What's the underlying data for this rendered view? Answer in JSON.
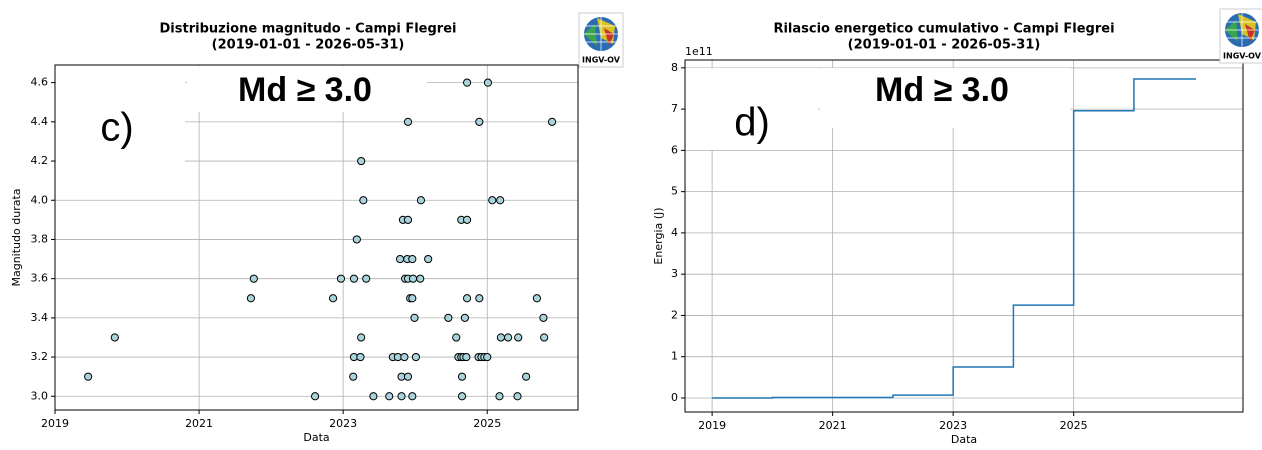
{
  "chart_data": [
    {
      "type": "scatter",
      "title": "Distribuzione magnitudo - Campi Flegrei",
      "subtitle": "(2019-01-01 - 2026-05-31)",
      "x_label": "Data",
      "y_label": "Magnitudo durata",
      "annotations": [
        "Md ≥ 3.0",
        "c)"
      ],
      "logo_text": "INGV-OV",
      "color": "#a9d4dc",
      "edge_color": "#000000",
      "grid": true,
      "xlim": [
        2019,
        2026.26
      ],
      "xticks": [
        2019,
        2021,
        2023,
        2025
      ],
      "ylim": [
        2.93,
        4.69
      ],
      "yticks": [
        {
          "value": 3,
          "label": "3.0"
        },
        3.2,
        3.4,
        3.6,
        3.8,
        {
          "value": 4,
          "label": "4.0"
        },
        4.2,
        4.4,
        4.6
      ],
      "x": [
        2019.46,
        2019.83,
        2021.72,
        2021.76,
        2022.61,
        2022.86,
        2022.97,
        2023.14,
        2023.15,
        2023.15,
        2023.19,
        2023.24,
        2023.25,
        2023.25,
        2023.28,
        2023.32,
        2023.42,
        2023.64,
        2023.69,
        2023.76,
        2023.79,
        2023.81,
        2023.81,
        2023.83,
        2023.85,
        2023.86,
        2023.89,
        2023.9,
        2023.9,
        2023.9,
        2023.9,
        2023.93,
        2023.96,
        2023.96,
        2023.96,
        2023.97,
        2023.99,
        2024.01,
        2024.07,
        2024.08,
        2024.18,
        2024.46,
        2024.57,
        2024.6,
        2024.64,
        2024.64,
        2024.65,
        2024.65,
        2024.67,
        2024.69,
        2024.71,
        2024.72,
        2024.72,
        2024.72,
        2024.88,
        2024.89,
        2024.89,
        2024.92,
        2024.96,
        2025.0,
        2025.01,
        2025.07,
        2025.17,
        2025.18,
        2025.19,
        2025.29,
        2025.42,
        2025.43,
        2025.54,
        2025.69,
        2025.78,
        2025.79,
        2025.9
      ],
      "values": [
        3.1,
        3.3,
        3.5,
        3.6,
        3.0,
        3.5,
        3.6,
        3.1,
        3.2,
        3.6,
        3.8,
        3.2,
        3.3,
        4.2,
        4.0,
        3.6,
        3.0,
        3.0,
        3.2,
        3.2,
        3.7,
        3.1,
        3.0,
        3.9,
        3.2,
        3.6,
        3.7,
        3.6,
        3.1,
        3.9,
        4.4,
        3.5,
        3.0,
        3.7,
        3.5,
        3.6,
        3.4,
        3.2,
        3.6,
        4.0,
        3.7,
        3.4,
        3.3,
        3.2,
        3.2,
        3.9,
        3.1,
        3.0,
        3.2,
        3.4,
        3.2,
        4.6,
        3.5,
        3.9,
        3.2,
        3.5,
        4.4,
        3.2,
        3.2,
        3.2,
        4.6,
        4.0,
        3.0,
        4.0,
        3.3,
        3.3,
        3.0,
        3.3,
        3.1,
        3.5,
        3.4,
        3.3,
        4.4
      ]
    },
    {
      "type": "line",
      "step": "post",
      "title": "Rilascio energetico cumulativo - Campi Flegrei",
      "subtitle": "(2019-01-01 - 2026-05-31)",
      "x_label": "Data",
      "y_label": "Energia (J)",
      "offset_text": "1e11",
      "annotations": [
        "Md ≥ 3.0",
        "d)"
      ],
      "logo_text": "INGV-OV",
      "grid": true,
      "xlim": [
        2018.55,
        2027.81
      ],
      "xticks": [
        2019,
        2021,
        2023,
        2025
      ],
      "ylim": [
        -0.34,
        8.19
      ],
      "yticks": [
        0,
        1,
        2,
        3,
        4,
        5,
        6,
        7,
        8
      ],
      "x": [
        2019,
        2020,
        2022,
        2023,
        2024,
        2025,
        2026,
        2027.03
      ],
      "series": [
        {
          "color": "#1f77b4",
          "values": [
            0,
            0.01,
            0.07,
            0.75,
            2.25,
            6.96,
            7.73,
            7.73
          ]
        }
      ]
    }
  ]
}
